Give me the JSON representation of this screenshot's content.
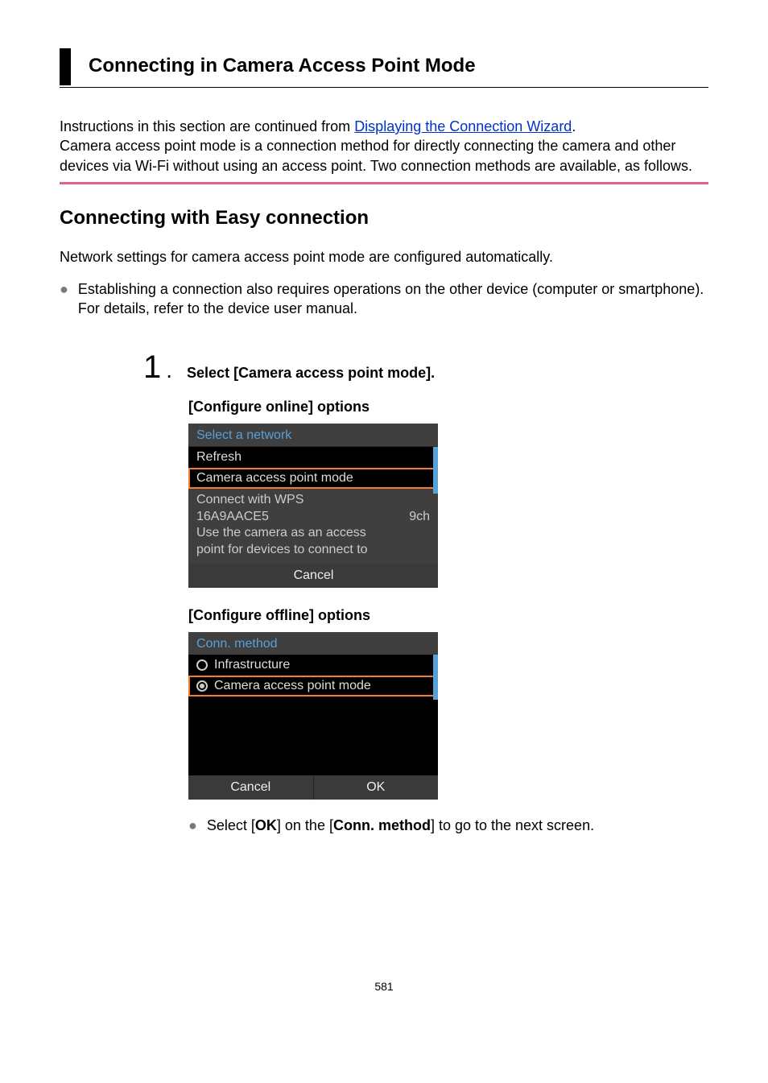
{
  "page": {
    "title": "Connecting in Camera Access Point Mode",
    "intro_prefix": "Instructions in this section are continued from ",
    "intro_link": "Displaying the Connection Wizard",
    "intro_suffix": ".",
    "intro_body": "Camera access point mode is a connection method for directly connecting the camera and other devices via Wi-Fi without using an access point. Two connection methods are available, as follows.",
    "subheading": "Connecting with Easy connection",
    "para1": "Network settings for camera access point mode are configured automatically.",
    "bullet1": "Establishing a connection also requires operations on the other device (computer or smartphone). For details, refer to the device user manual.",
    "page_number": "581"
  },
  "step1": {
    "number": "1",
    "text": "Select [Camera access point mode].",
    "online_label": "[Configure online] options",
    "offline_label": "[Configure offline] options",
    "sub_bullet_prefix": "Select [",
    "sub_bullet_bold1": "OK",
    "sub_bullet_mid": "] on the [",
    "sub_bullet_bold2": "Conn. method",
    "sub_bullet_suffix": "] to go to the next screen."
  },
  "screen_online": {
    "header": "Select a network",
    "items": {
      "refresh": "Refresh",
      "cap": "Camera access point mode",
      "wps": "Connect with WPS",
      "net_name": "16A9AACE5",
      "net_chan": "9ch"
    },
    "desc_line1": "Use the camera as an access",
    "desc_line2": "point for devices to connect to",
    "footer_cancel": "Cancel",
    "colors": {
      "bg": "#3a3a3a",
      "header_text": "#58a0d8",
      "highlight_border": "#f08030",
      "scroll": "#58a0d8"
    }
  },
  "screen_offline": {
    "header": "Conn. method",
    "row1": "Infrastructure",
    "row2": "Camera access point mode",
    "footer_cancel": "Cancel",
    "footer_ok": "OK",
    "colors": {
      "bg": "#000000",
      "header_bg": "#3f3f3f",
      "header_text": "#58a0d8",
      "highlight_border": "#f08030",
      "scroll": "#58a0d8",
      "footer_bg": "#3a3a3a"
    }
  },
  "style": {
    "pink_rule": "#e85d95",
    "link_color": "#0033cc"
  }
}
